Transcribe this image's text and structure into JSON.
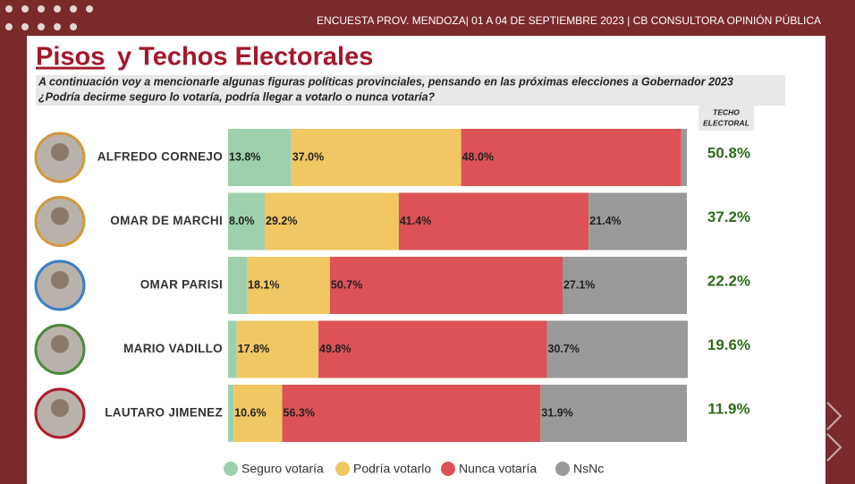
{
  "chart_data": {
    "type": "stacked-bar-horizontal",
    "source": "ENCUESTA PROV. MENDOZA| 01 A 04 DE SEPTIEMBRE 2023 | CB CONSULTORA OPINIÓN PÚBLICA",
    "title_underlined": "Pisos",
    "title_rest": "y Techos Electorales",
    "subtitle": [
      "A continuación voy a mencionarle algunas figuras políticas provinciales, pensando en las próximas elecciones a Gobernador 2023",
      "¿Podría  decirme seguro lo votaría, podría llegar a votarlo o nunca votaría?"
    ],
    "categories": [
      "ALFREDO CORNEJO",
      "OMAR DE MARCHI",
      "OMAR PARISI",
      "MARIO VADILLO",
      "LAUTARO JIMENEZ"
    ],
    "xlim": [
      0,
      100
    ],
    "series": [
      {
        "name": "Seguro votaría",
        "color": "#9dd1ae",
        "values": [
          13.8,
          8.0,
          4.1,
          1.9,
          1.2
        ],
        "value_labels": [
          "13.8%",
          "8.0%",
          null,
          null,
          null
        ]
      },
      {
        "name": "Podría votarlo",
        "color": "#f0c763",
        "values": [
          37.0,
          29.2,
          18.1,
          17.8,
          10.6
        ],
        "value_labels": [
          "37.0%",
          "29.2%",
          "18.1%",
          "17.8%",
          "10.6%"
        ]
      },
      {
        "name": "Nunca votaría",
        "color": "#dd5257",
        "values": [
          48.0,
          41.4,
          50.7,
          49.8,
          56.3
        ],
        "value_labels": [
          "48.0%",
          "41.4%",
          "50.7%",
          "49.8%",
          "56.3%"
        ]
      },
      {
        "name": "NsNc",
        "color": "#9a9a9a",
        "values": [
          1.2,
          21.4,
          27.1,
          30.7,
          31.9
        ],
        "value_labels": [
          null,
          "21.4%",
          "27.1%",
          "30.7%",
          "31.9%"
        ]
      }
    ],
    "techo_title": [
      "TECHO",
      "ELECTORAL"
    ],
    "techo_labels": [
      "50.8%",
      "37.2%",
      "22.2%",
      "19.6%",
      "11.9%"
    ]
  }
}
